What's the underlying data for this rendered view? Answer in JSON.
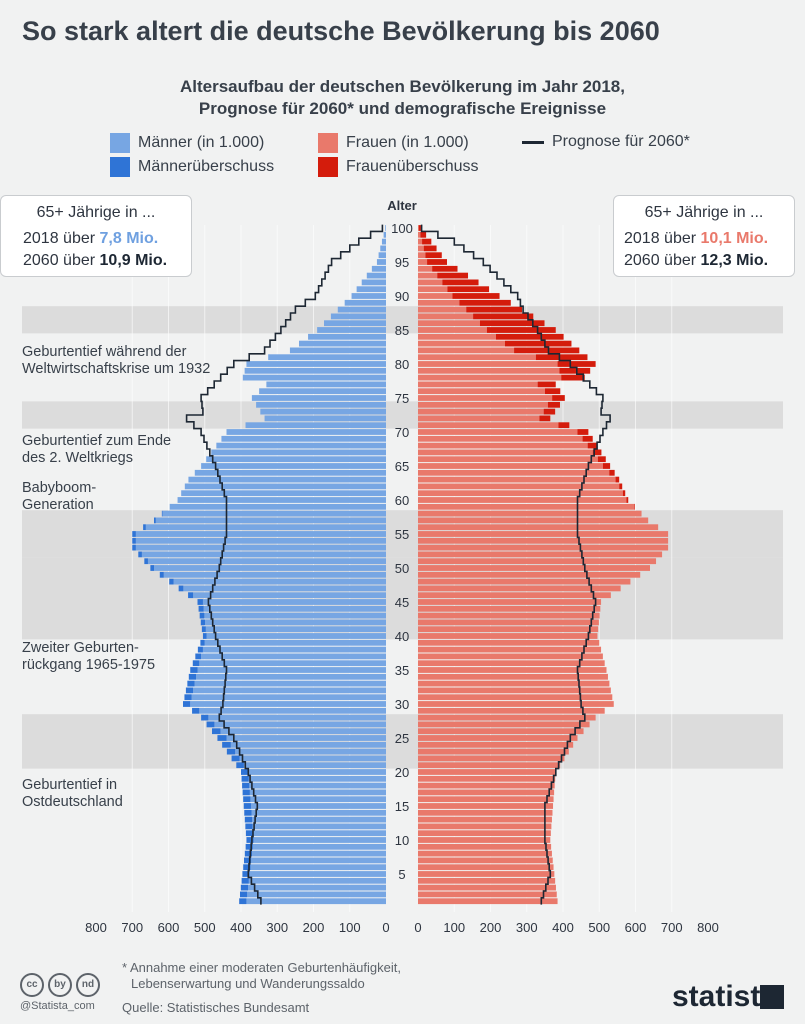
{
  "title": "So stark altert die deutsche Bevölkerung bis 2060",
  "subtitle_line1": "Altersaufbau der deutschen Bevölkerung im Jahr 2018,",
  "subtitle_line2": "Prognose für 2060* und demografische Ereignisse",
  "legend": {
    "men": "Männer (in 1.000)",
    "women": "Frauen (in 1.000)",
    "forecast": "Prognose für 2060*",
    "men_surplus": "Männerüberschuss",
    "women_surplus": "Frauenüberschuss"
  },
  "colors": {
    "men": "#77a6e3",
    "men_surplus": "#2f74d6",
    "women": "#e9796b",
    "women_surplus": "#d41c0c",
    "forecast": "#1d2733",
    "band": "#dcdcdc"
  },
  "box_left": {
    "title": "65+ Jährige in ...",
    "line1_prefix": "2018 über ",
    "line1_value": "7,8 Mio.",
    "line2_prefix": "2060 über ",
    "line2_value": "10,9 Mio."
  },
  "box_right": {
    "title": "65+ Jährige in ...",
    "line1_prefix": "2018 über ",
    "line1_value": "10,1 Mio.",
    "line2_prefix": "2060 über ",
    "line2_value": "12,3 Mio."
  },
  "annotations": {
    "a1_line1": "Geburtentief während der",
    "a1_line2": "Weltwirtschaftskrise um 1932",
    "a2_line1": "Geburtentief zum Ende",
    "a2_line2": "des 2. Weltkriegs",
    "a3_line1": "Babyboom-",
    "a3_line2": "Generation",
    "a4_line1": "Zweiter Geburten-",
    "a4_line2": "rückgang 1965-1975",
    "a5_line1": "Geburtentief in",
    "a5_line2": "Ostdeutschland"
  },
  "footnote_line1": "* Annahme einer moderaten Geburtenhäufigkeit,",
  "footnote_line2": "Lebenserwartung und Wanderungssaldo",
  "source": "Quelle: Statistisches Bundesamt",
  "handle": "@Statista_com",
  "brand": "statista",
  "cc_icons": [
    "cc",
    "by",
    "nd"
  ],
  "chart_data": {
    "type": "bar",
    "orientation": "horizontal-population-pyramid",
    "y_label": "Alter",
    "age_ticks": [
      5,
      10,
      15,
      20,
      25,
      30,
      35,
      40,
      45,
      50,
      55,
      60,
      65,
      70,
      75,
      80,
      85,
      90,
      95,
      100
    ],
    "x_ticks": [
      800,
      700,
      600,
      500,
      400,
      300,
      200,
      100,
      0
    ],
    "xlim": [
      0,
      800
    ],
    "event_bands": [
      [
        85,
        88
      ],
      [
        71,
        74
      ],
      [
        40,
        47
      ],
      [
        48,
        51
      ],
      [
        52,
        58
      ],
      [
        21,
        28
      ]
    ],
    "series": [
      {
        "name": "Männer (in 1.000)",
        "x_keys": [
          1,
          10,
          20,
          25,
          28,
          30,
          35,
          40,
          45,
          50,
          53,
          55,
          57,
          60,
          63,
          65,
          70,
          72,
          75,
          77,
          78,
          80,
          82,
          85,
          90,
          95,
          100
        ],
        "values": [
          405,
          385,
          400,
          465,
          510,
          560,
          540,
          505,
          520,
          650,
          700,
          700,
          640,
          575,
          545,
          510,
          440,
          335,
          370,
          330,
          395,
          385,
          265,
          190,
          95,
          25,
          2
        ]
      },
      {
        "name": "Frauen (in 1.000)",
        "x_keys": [
          1,
          10,
          20,
          25,
          28,
          30,
          35,
          40,
          45,
          50,
          53,
          55,
          57,
          60,
          63,
          65,
          70,
          72,
          75,
          77,
          78,
          80,
          82,
          85,
          90,
          95,
          100
        ],
        "values": [
          385,
          365,
          380,
          440,
          490,
          540,
          520,
          495,
          505,
          640,
          690,
          690,
          635,
          580,
          555,
          530,
          470,
          365,
          405,
          380,
          460,
          490,
          445,
          380,
          225,
          80,
          8
        ]
      },
      {
        "name": "Prognose für 2060*",
        "x_keys": [
          1,
          5,
          10,
          15,
          20,
          25,
          28,
          30,
          35,
          40,
          45,
          50,
          55,
          60,
          65,
          70,
          72,
          73,
          75,
          80,
          82,
          85,
          88,
          90,
          95,
          98,
          100
        ],
        "values": [
          345,
          380,
          370,
          355,
          380,
          420,
          460,
          450,
          440,
          470,
          490,
          460,
          440,
          440,
          470,
          510,
          550,
          505,
          510,
          420,
          335,
          290,
          250,
          195,
          150,
          75,
          10
        ],
        "values_right": [
          340,
          365,
          350,
          350,
          380,
          420,
          460,
          450,
          440,
          470,
          490,
          460,
          440,
          440,
          470,
          510,
          530,
          505,
          510,
          420,
          360,
          330,
          290,
          275,
          180,
          100,
          10
        ]
      }
    ]
  }
}
